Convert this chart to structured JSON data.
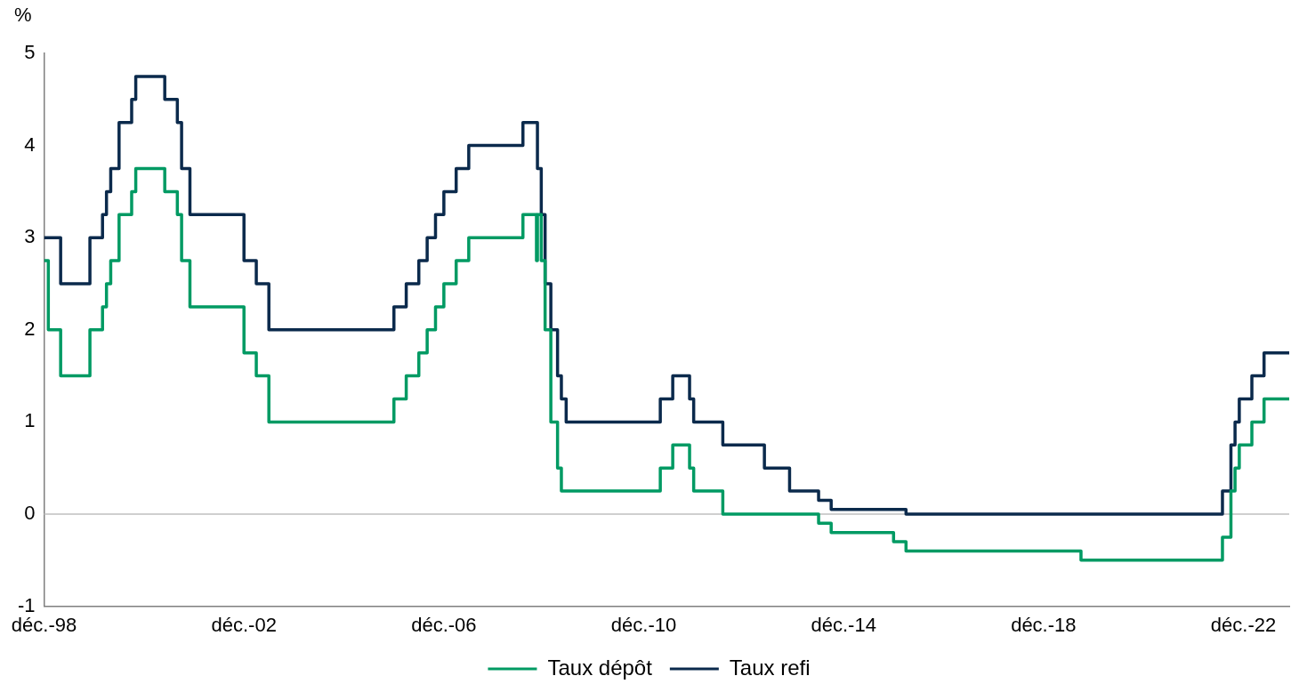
{
  "chart_data": {
    "type": "step",
    "ylabel": "%",
    "xlim": [
      "1998-12",
      "2023-11"
    ],
    "xticks": [
      {
        "value": "1998-12",
        "label": "déc.-98"
      },
      {
        "value": "2002-12",
        "label": "déc.-02"
      },
      {
        "value": "2006-12",
        "label": "déc.-06"
      },
      {
        "value": "2010-12",
        "label": "déc.-10"
      },
      {
        "value": "2014-12",
        "label": "déc.-14"
      },
      {
        "value": "2018-12",
        "label": "déc.-18"
      },
      {
        "value": "2022-12",
        "label": "déc.-22"
      }
    ],
    "ylim": [
      -1,
      5
    ],
    "yticks": [
      -1,
      0,
      1,
      2,
      3,
      4,
      5
    ],
    "grid": false,
    "legend": "bottom",
    "line_style": "solid",
    "marker": "none",
    "ref_lines": [
      {
        "axis": "y",
        "value": 0,
        "color": "#bfbfbf"
      }
    ],
    "series": [
      {
        "name": "Taux dépôt",
        "color": "#009a63",
        "x": [
          "1998-12",
          "1999-01",
          "1999-04",
          "1999-11",
          "2000-02",
          "2000-03",
          "2000-04",
          "2000-06",
          "2000-09",
          "2000-10",
          "2001-05",
          "2001-08",
          "2001-09",
          "2001-11",
          "2002-12",
          "2003-03",
          "2003-06",
          "2005-12",
          "2006-03",
          "2006-06",
          "2006-08",
          "2006-10",
          "2006-12",
          "2007-03",
          "2007-06",
          "2008-07",
          "2008-10-08",
          "2008-10-15",
          "2008-11-12",
          "2008-12-10",
          "2009-01-21",
          "2009-03-11",
          "2009-04-08",
          "2011-04",
          "2011-07",
          "2011-11",
          "2011-12",
          "2012-07",
          "2014-06",
          "2014-09",
          "2015-12",
          "2016-03",
          "2019-09",
          "2022-07",
          "2022-09",
          "2022-10",
          "2022-11",
          "2023-02",
          "2023-05",
          "2023-11"
        ],
        "values": [
          2.75,
          2.0,
          1.5,
          2.0,
          2.25,
          2.5,
          2.75,
          3.25,
          3.5,
          3.75,
          3.5,
          3.25,
          2.75,
          2.25,
          1.75,
          1.5,
          1.0,
          1.25,
          1.5,
          1.75,
          2.0,
          2.25,
          2.5,
          2.75,
          3.0,
          3.25,
          2.75,
          3.25,
          2.75,
          2.0,
          1.0,
          0.5,
          0.25,
          0.5,
          0.75,
          0.5,
          0.25,
          0.0,
          -0.1,
          -0.2,
          -0.3,
          -0.4,
          -0.5,
          -0.25,
          0.25,
          0.5,
          0.75,
          1.0,
          1.25,
          1.25
        ]
      },
      {
        "name": "Taux refi",
        "color": "#0b2a4c",
        "x": [
          "1998-12",
          "1999-04",
          "1999-11",
          "2000-02",
          "2000-03",
          "2000-04",
          "2000-06",
          "2000-09",
          "2000-10",
          "2001-05",
          "2001-08",
          "2001-09",
          "2001-11",
          "2002-12",
          "2003-03",
          "2003-06",
          "2005-12",
          "2006-03",
          "2006-06",
          "2006-08",
          "2006-10",
          "2006-12",
          "2007-03",
          "2007-06",
          "2008-07",
          "2008-10-15",
          "2008-11-12",
          "2008-12-10",
          "2009-01-21",
          "2009-03-11",
          "2009-04-08",
          "2009-05-13",
          "2011-04",
          "2011-07",
          "2011-11",
          "2011-12",
          "2012-07",
          "2013-05",
          "2013-11",
          "2014-06",
          "2014-09",
          "2016-03",
          "2022-07",
          "2022-09",
          "2022-10",
          "2022-11",
          "2023-02",
          "2023-05",
          "2023-11"
        ],
        "values": [
          3.0,
          2.5,
          3.0,
          3.25,
          3.5,
          3.75,
          4.25,
          4.5,
          4.75,
          4.5,
          4.25,
          3.75,
          3.25,
          2.75,
          2.5,
          2.0,
          2.25,
          2.5,
          2.75,
          3.0,
          3.25,
          3.5,
          3.75,
          4.0,
          4.25,
          3.75,
          3.25,
          2.5,
          2.0,
          1.5,
          1.25,
          1.0,
          1.25,
          1.5,
          1.25,
          1.0,
          0.75,
          0.5,
          0.25,
          0.15,
          0.05,
          0.0,
          0.25,
          0.75,
          1.0,
          1.25,
          1.5,
          1.75,
          1.75
        ]
      }
    ]
  }
}
